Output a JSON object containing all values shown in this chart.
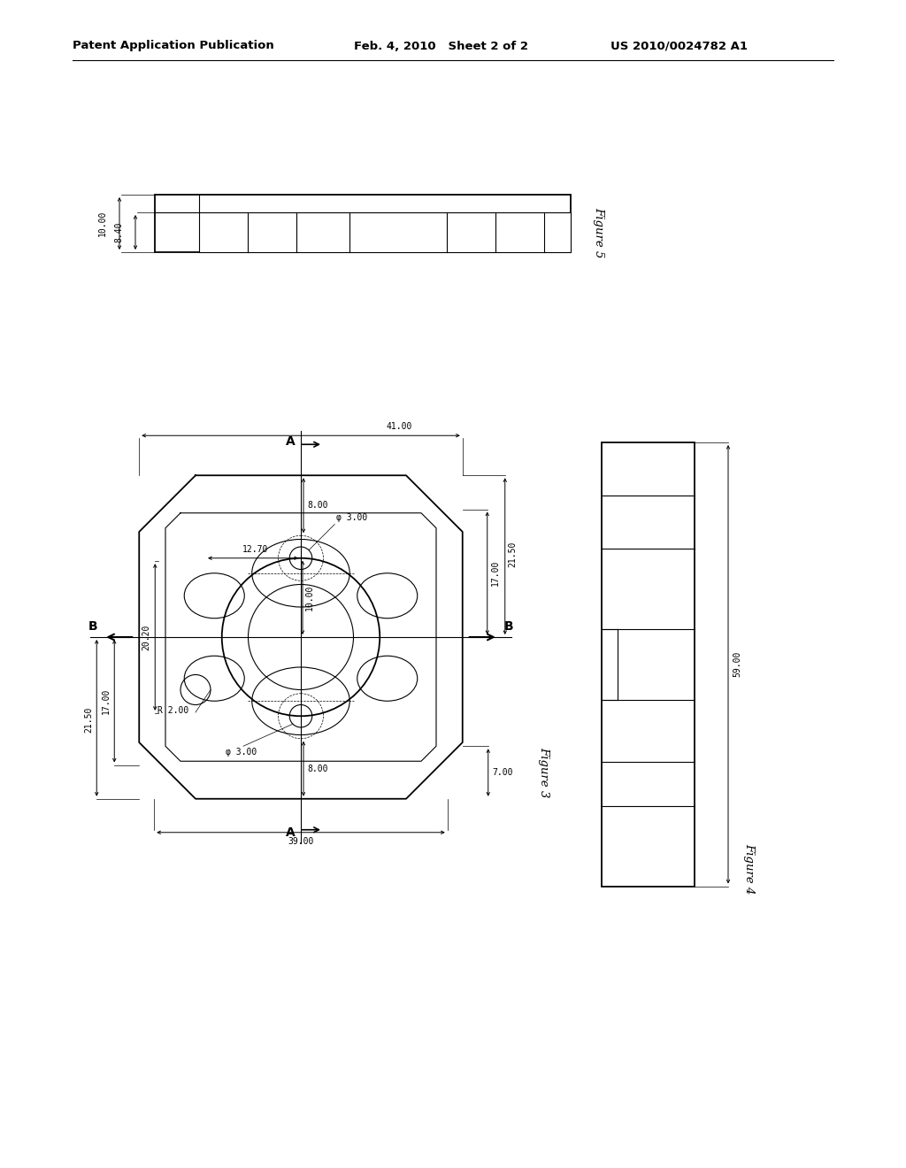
{
  "bg_color": "#ffffff",
  "header_left": "Patent Application Publication",
  "header_center": "Feb. 4, 2010   Sheet 2 of 2",
  "header_right": "US 2010/0024782 A1",
  "fig5_label": "Figure 5",
  "fig5_dim_10": "10.00",
  "fig5_dim_8": "8.40",
  "fig3_label": "Figure 3",
  "fig4_label": "Figure 4",
  "dim_41": "41.00",
  "dim_39": "39.00",
  "dim_17r": "17.00",
  "dim_21r": "21.50",
  "dim_17l": "17.00",
  "dim_21l": "21.50",
  "dim_12": "12.70",
  "dim_20": "20.20",
  "dim_10": "10.00",
  "dim_8t": "8.00",
  "dim_8b": "8.00",
  "dim_phi3t": "φ 3.00",
  "dim_phi3b": "φ 3.00",
  "dim_R2": "R 2.00",
  "dim_7": "7.00",
  "dim_59": "59.00"
}
